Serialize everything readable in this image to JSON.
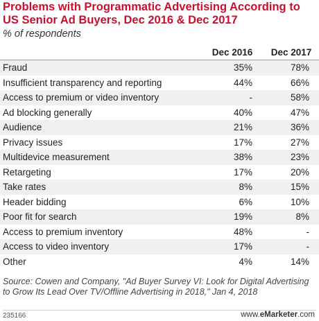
{
  "chart_data": {
    "type": "table",
    "title": "Problems with Programmatic Advertising According to US Senior Ad Buyers, Dec 2016 & Dec 2017",
    "subtitle": "% of respondents",
    "columns": [
      "Dec 2016",
      "Dec 2017"
    ],
    "rows": [
      {
        "label": "Fraud",
        "values": [
          "35%",
          "78%"
        ]
      },
      {
        "label": "Insufficient transparency and reporting",
        "values": [
          "44%",
          "66%"
        ]
      },
      {
        "label": "Access to premium or video inventory",
        "values": [
          "-",
          "58%"
        ]
      },
      {
        "label": "Ad blocking generally",
        "values": [
          "40%",
          "47%"
        ]
      },
      {
        "label": "Audience",
        "values": [
          "21%",
          "36%"
        ]
      },
      {
        "label": "Privacy issues",
        "values": [
          "17%",
          "27%"
        ]
      },
      {
        "label": "Multidevice measurement",
        "values": [
          "38%",
          "23%"
        ]
      },
      {
        "label": "Retargeting",
        "values": [
          "17%",
          "20%"
        ]
      },
      {
        "label": "Take rates",
        "values": [
          "8%",
          "15%"
        ]
      },
      {
        "label": "Header bidding",
        "values": [
          "6%",
          "10%"
        ]
      },
      {
        "label": "Poor fit for search",
        "values": [
          "19%",
          "8%"
        ]
      },
      {
        "label": "Access to premium inventory",
        "values": [
          "48%",
          "-"
        ]
      },
      {
        "label": "Access to video inventory",
        "values": [
          "17%",
          "-"
        ]
      },
      {
        "label": "Other",
        "values": [
          "4%",
          "14%"
        ]
      }
    ]
  },
  "footer": {
    "source": "Source: Cowen and Company, \"Ad Buyer Survey VI: Look for Digital Advertising to Grow Its Lead Over TV/Offline Advertising in 2018,\" Jan 4, 2018",
    "chart_id": "235166",
    "brand_prefix": "www.",
    "brand_name": "eMarketer",
    "brand_suffix": ".com"
  }
}
